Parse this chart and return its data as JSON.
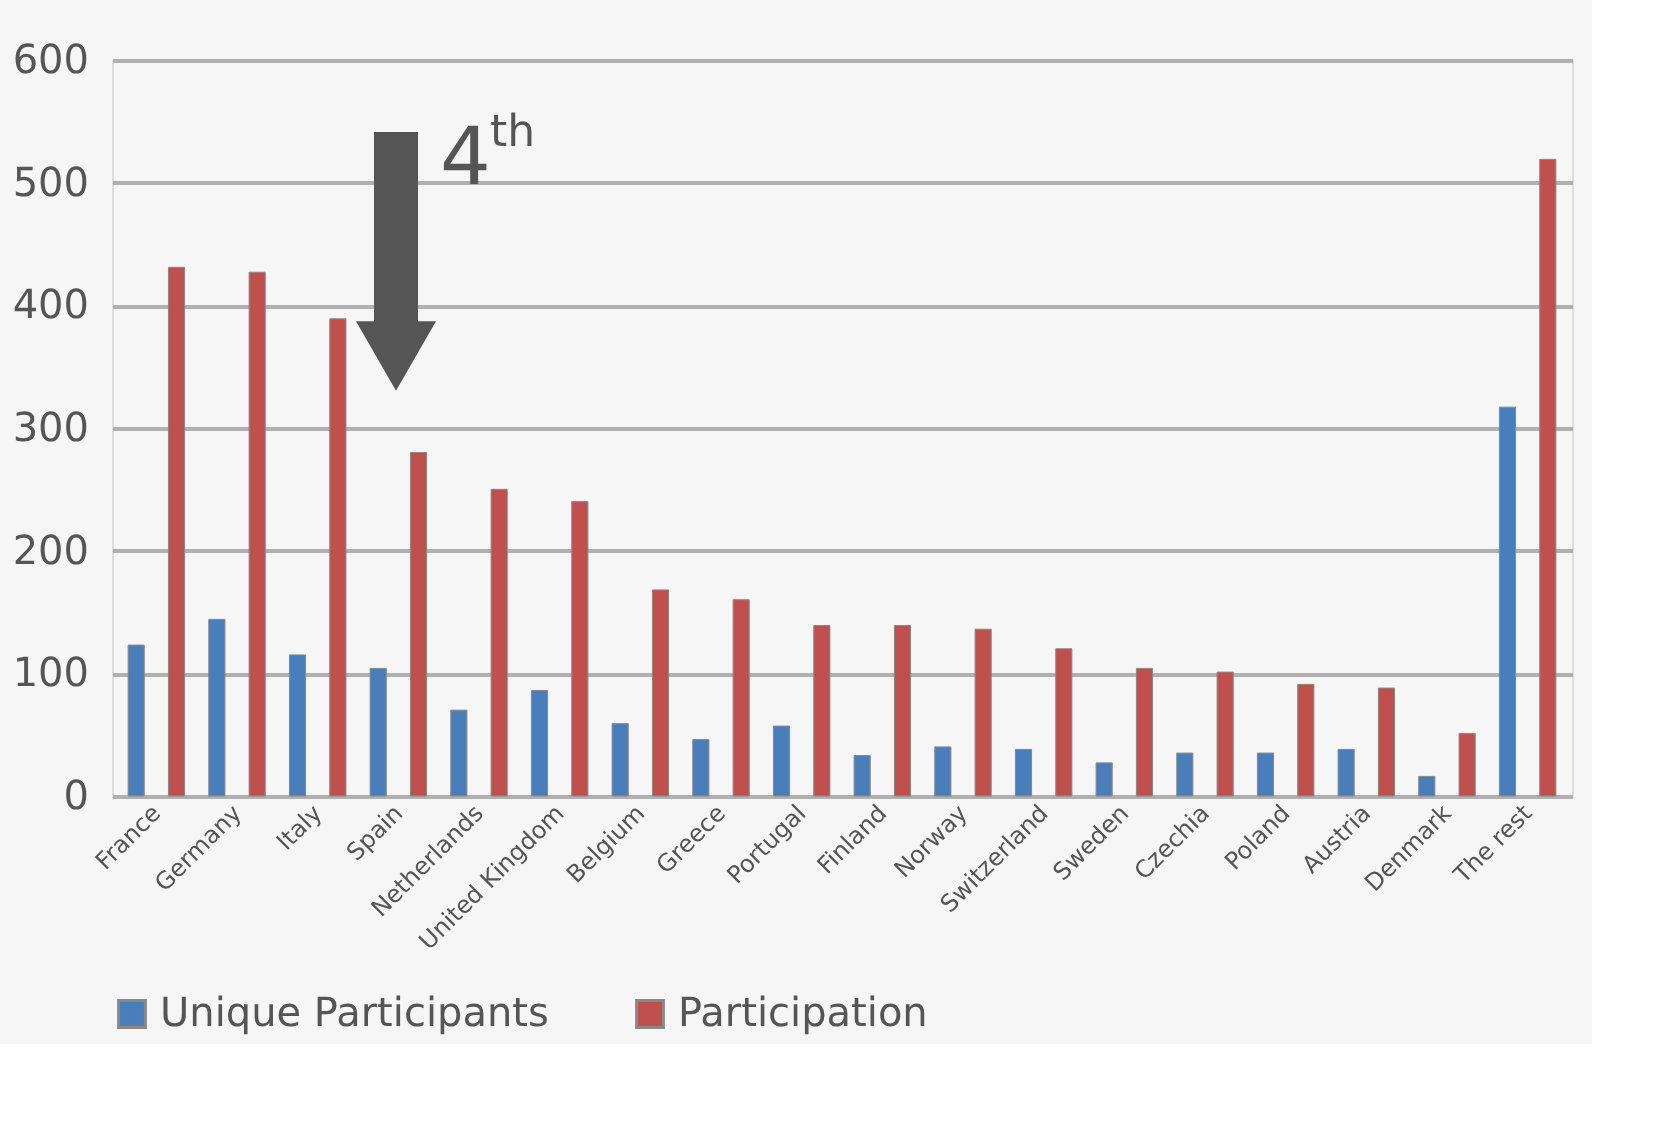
{
  "chart_data": {
    "type": "bar",
    "categories": [
      "France",
      "Germany",
      "Italy",
      "Spain",
      "Netherlands",
      "United Kingdom",
      "Belgium",
      "Greece",
      "Portugal",
      "Finland",
      "Norway",
      "Switzerland",
      "Sweden",
      "Czechia",
      "Poland",
      "Austria",
      "Denmark",
      "The rest"
    ],
    "series": [
      {
        "name": "Unique Participants",
        "color": "#4a7ebb",
        "values": [
          123,
          144,
          115,
          104,
          70,
          86,
          59,
          46,
          57,
          33,
          40,
          38,
          27,
          35,
          35,
          38,
          16,
          317
        ]
      },
      {
        "name": "Participation",
        "color": "#c0504d",
        "values": [
          431,
          427,
          389,
          280,
          250,
          240,
          168,
          160,
          139,
          139,
          136,
          120,
          104,
          101,
          91,
          88,
          51,
          519
        ]
      }
    ],
    "ylim": [
      0,
      600
    ],
    "yticks": [
      0,
      100,
      200,
      300,
      400,
      500,
      600
    ],
    "grid": "y",
    "legend": "bottom",
    "annotations": [
      "4$^{th}$"
    ]
  }
}
